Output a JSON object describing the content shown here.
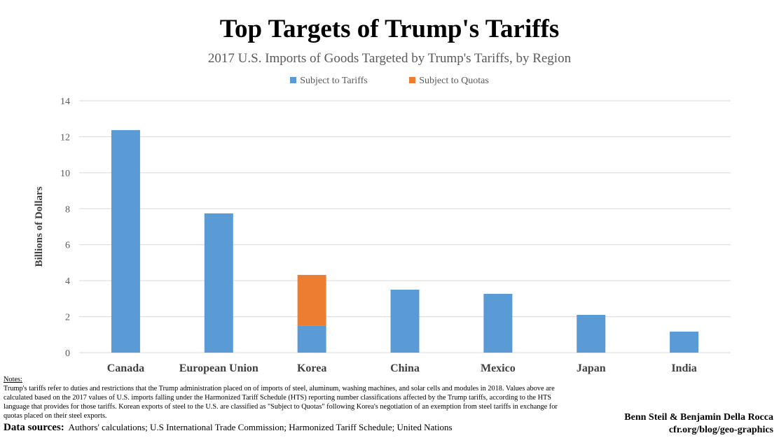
{
  "chart_data": {
    "type": "bar",
    "stacked": true,
    "title": "Top Targets of Trump's Tariffs",
    "subtitle": "2017 U.S. Imports of Goods Targeted by Trump's Tariffs, by Region",
    "xlabel": "",
    "ylabel": "Billions of Dollars",
    "ylim": [
      0,
      14
    ],
    "yticks": [
      0,
      2,
      4,
      6,
      8,
      10,
      12,
      14
    ],
    "grid": true,
    "legend_placement": "top",
    "categories": [
      "Canada",
      "European Union",
      "Korea",
      "China",
      "Mexico",
      "Japan",
      "India"
    ],
    "series": [
      {
        "name": "Subject to Tariffs",
        "color": "#5B9BD5",
        "values": [
          12.37,
          7.74,
          1.48,
          3.5,
          3.27,
          2.1,
          1.17
        ]
      },
      {
        "name": "Subject to Quotas",
        "color": "#ED7D31",
        "values": [
          0,
          0,
          2.84,
          0,
          0,
          0,
          0
        ]
      }
    ]
  },
  "notes": {
    "heading": "Notes:",
    "text": "Trump's tariffs refer to duties and restrictions that the Trump administration placed on of imports of steel, aluminum, washing machines, and solar cells and modules in 2018. Values above are calculated based on the 2017 values of U.S. imports falling under the Harmonized Tariff Schedule (HTS) reporting number classifications affected by the Trump tariffs, according to the HTS language that provides for those tariffs. Korean exports of steel to the U.S. are classified as \"Subject to Quotas\" following Korea's negotiation of an exemption from steel tariffs in exchange for quotas placed on their steel exports."
  },
  "sources": {
    "label": "Data sources:",
    "text": "Authors' calculations; U.S International Trade Commission; Harmonized Tariff Schedule; United Nations"
  },
  "credit": {
    "authors": "Benn Steil & Benjamin Della Rocca",
    "site": "cfr.org/blog/geo-graphics"
  }
}
